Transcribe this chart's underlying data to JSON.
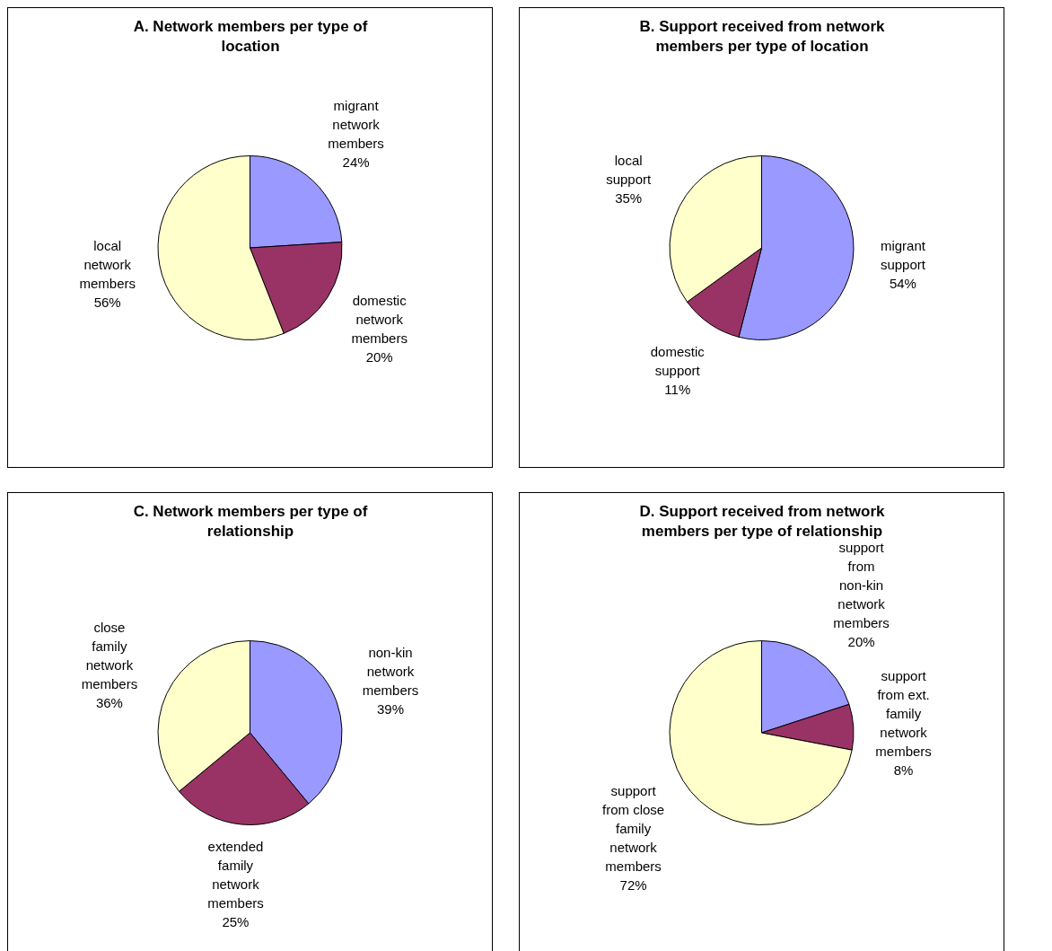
{
  "chart_data": [
    {
      "type": "pie",
      "title": "A. Network members per type of location",
      "categories": [
        "migrant network members",
        "domestic network members",
        "local network members"
      ],
      "values": [
        24,
        20,
        56
      ],
      "colors": [
        "#9999ff",
        "#993366",
        "#ffffcc"
      ],
      "value_labels": [
        "24%",
        "20%",
        "56%"
      ]
    },
    {
      "type": "pie",
      "title": "B. Support received from network members per type of location",
      "categories": [
        "migrant support",
        "domestic support",
        "local support"
      ],
      "values": [
        54,
        11,
        35
      ],
      "colors": [
        "#9999ff",
        "#993366",
        "#ffffcc"
      ],
      "value_labels": [
        "54%",
        "11%",
        "35%"
      ]
    },
    {
      "type": "pie",
      "title": "C. Network members per type of relationship",
      "categories": [
        "non-kin network members",
        "extended family network members",
        "close family network members"
      ],
      "values": [
        39,
        25,
        36
      ],
      "colors": [
        "#9999ff",
        "#993366",
        "#ffffcc"
      ],
      "value_labels": [
        "39%",
        "25%",
        "36%"
      ]
    },
    {
      "type": "pie",
      "title": "D. Support received from network members per type of relationship",
      "categories": [
        "support from non-kin network members",
        "support from ext. family network members",
        "support from close family network members"
      ],
      "values": [
        20,
        8,
        72
      ],
      "colors": [
        "#9999ff",
        "#993366",
        "#ffffcc"
      ],
      "value_labels": [
        "20%",
        "8%",
        "72%"
      ]
    }
  ]
}
